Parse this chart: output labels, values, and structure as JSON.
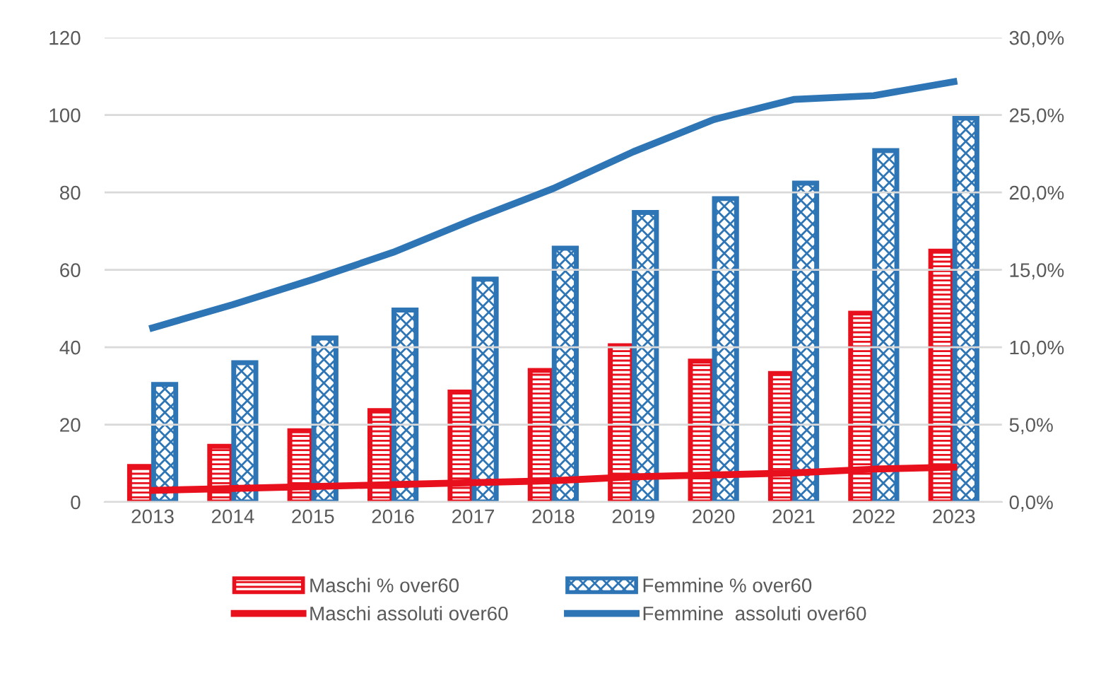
{
  "chart_data": {
    "type": "bar",
    "categories": [
      "2013",
      "2014",
      "2015",
      "2016",
      "2017",
      "2018",
      "2019",
      "2020",
      "2021",
      "2022",
      "2023"
    ],
    "series": [
      {
        "name": "Maschi % over60",
        "color": "#e8101c",
        "axis": "y2",
        "values": [
          2.3,
          3.6,
          4.6,
          5.9,
          7.1,
          8.5,
          10.1,
          9.1,
          8.3,
          12.2,
          16.2
        ]
      },
      {
        "name": "Femmine % over60",
        "color": "#2e75b6",
        "axis": "y2",
        "values": [
          7.6,
          9.0,
          10.6,
          12.4,
          14.4,
          16.4,
          18.7,
          19.6,
          20.6,
          22.7,
          24.8
        ]
      },
      {
        "name": "Maschi assoluti over60",
        "color": "#e8101c",
        "type": "line",
        "values": [
          3,
          3.5,
          4,
          4.5,
          5,
          5.5,
          6.5,
          7,
          7.5,
          8.5,
          9
        ]
      },
      {
        "name": "Femmine  assoluti over60",
        "color": "#2e75b6",
        "type": "line",
        "values": [
          45,
          51,
          57.5,
          64.5,
          73,
          81,
          90.5,
          98.8,
          104,
          105,
          108.6
        ]
      }
    ],
    "ylim": [
      0,
      120
    ],
    "yticks": [
      0,
      20,
      40,
      60,
      80,
      100,
      120
    ],
    "y2lim": [
      0,
      30
    ],
    "y2ticks": [
      {
        "value": 0,
        "label": "0,0%"
      },
      {
        "value": 5,
        "label": "5,0%"
      },
      {
        "value": 10,
        "label": "10,0%"
      },
      {
        "value": 15,
        "label": "15,0%"
      },
      {
        "value": 20,
        "label": "20,0%"
      },
      {
        "value": 25,
        "label": "25,0%"
      },
      {
        "value": 30,
        "label": "30,0%"
      }
    ],
    "grid": "y",
    "legend": "bottom",
    "marker": "none",
    "line_style": "solid"
  }
}
